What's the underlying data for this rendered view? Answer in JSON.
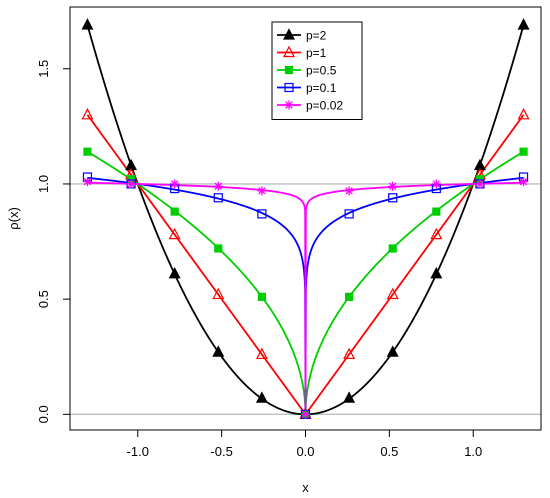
{
  "chart_data": {
    "type": "line",
    "xlabel": "x",
    "ylabel": "ρ(x)",
    "xlim": [
      -1.3,
      1.3
    ],
    "ylim": [
      0.0,
      1.7
    ],
    "xticks": [
      -1.0,
      -0.5,
      0.0,
      0.5,
      1.0
    ],
    "xtick_labels": [
      "-1.0",
      "-0.5",
      "0.0",
      "0.5",
      "1.0"
    ],
    "yticks": [
      0.0,
      0.5,
      1.0,
      1.5
    ],
    "ytick_labels": [
      "0.0",
      "0.5",
      "1.0",
      "1.5"
    ],
    "reference_lines": [
      0.0,
      1.0
    ],
    "reference_color": "#bebebe",
    "legend_position": "top-center",
    "markers_x": [
      -1.3,
      -1.04,
      -0.78,
      -0.52,
      -0.26,
      0.0,
      0.26,
      0.52,
      0.78,
      1.04,
      1.3
    ],
    "series": [
      {
        "name": "p=2",
        "p": 2,
        "color": "#000000",
        "marker": "triangle-filled",
        "values": [
          1.69,
          1.08,
          0.61,
          0.27,
          0.07,
          0.0,
          0.07,
          0.27,
          0.61,
          1.08,
          1.69
        ]
      },
      {
        "name": "p=1",
        "p": 1,
        "color": "#ff0000",
        "marker": "triangle-open",
        "values": [
          1.3,
          1.04,
          0.78,
          0.52,
          0.26,
          0.0,
          0.26,
          0.52,
          0.78,
          1.04,
          1.3
        ]
      },
      {
        "name": "p=0.5",
        "p": 0.5,
        "color": "#00cd00",
        "marker": "square-filled",
        "values": [
          1.14,
          1.02,
          0.88,
          0.72,
          0.51,
          0.0,
          0.51,
          0.72,
          0.88,
          1.02,
          1.14
        ]
      },
      {
        "name": "p=0.1",
        "p": 0.1,
        "color": "#0000ff",
        "marker": "square-open",
        "values": [
          1.03,
          1.0,
          0.98,
          0.94,
          0.87,
          0.0,
          0.87,
          0.94,
          0.98,
          1.0,
          1.03
        ]
      },
      {
        "name": "p=0.02",
        "p": 0.02,
        "color": "#ff00ff",
        "marker": "asterisk",
        "values": [
          1.01,
          1.0,
          1.0,
          0.99,
          0.97,
          0.0,
          0.97,
          0.99,
          1.0,
          1.0,
          1.01
        ]
      }
    ]
  }
}
